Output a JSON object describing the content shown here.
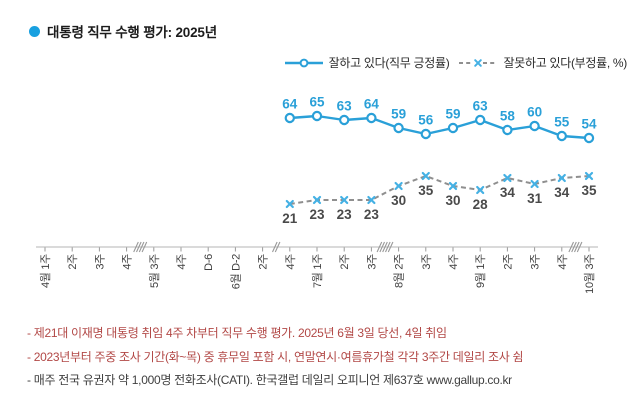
{
  "title": {
    "text": "대통령 직무 수행 평가: 2025년"
  },
  "legend": {
    "items": [
      {
        "label": "잘하고 있다(직무 긍정률)",
        "series": "positive"
      },
      {
        "label": "잘못하고 있다(부정률, %)",
        "series": "negative"
      }
    ]
  },
  "colors": {
    "positive_blue": "#2aa0d8",
    "marker_x_blue": "#45b1e4",
    "negative_gray": "#8f8f8f",
    "negative_label_gray": "#4a4a4a",
    "axis_gray": "#b5b5b5",
    "tick_gray": "#9a9a9a",
    "tick_label_gray": "#3f3f3f",
    "title_bullet_blue": "#18a0e0",
    "note_red": "#b24846",
    "note_dark": "#3f3f3f"
  },
  "chart_data": {
    "type": "line",
    "title": "대통령 직무 수행 평가: 2025년",
    "unit": "%",
    "grid": false,
    "legend_position": "top-right",
    "categories": [
      {
        "month": "4월",
        "week": "1주"
      },
      {
        "week": "2주"
      },
      {
        "week": "3주"
      },
      {
        "week": "4주"
      },
      {
        "month": "5월",
        "week": "3주"
      },
      {
        "week": "4주"
      },
      {
        "week": "D-6"
      },
      {
        "month": "6월",
        "week": "D-2"
      },
      {
        "week": "2주"
      },
      {
        "week": "4주"
      },
      {
        "month": "7월",
        "week": "1주"
      },
      {
        "week": "2주"
      },
      {
        "week": "3주"
      },
      {
        "month": "8월",
        "week": "2주"
      },
      {
        "week": "3주"
      },
      {
        "week": "4주"
      },
      {
        "month": "9월",
        "week": "1주"
      },
      {
        "week": "2주"
      },
      {
        "week": "3주"
      },
      {
        "week": "4주"
      },
      {
        "month": "10월",
        "week": "3주"
      }
    ],
    "axis_breaks": [
      {
        "after_index": 3,
        "slashes": 4
      },
      {
        "after_index": 8,
        "slashes": 2
      },
      {
        "after_index": 12,
        "slashes": 5
      },
      {
        "after_index": 19,
        "slashes": 4
      }
    ],
    "series": [
      {
        "name": "잘하고 있다(직무 긍정률)",
        "style": "solid",
        "marker": "circle",
        "label_position": "above",
        "color": "#2aa0d8",
        "label_color": "#2aa0d8",
        "marker_color": "#2aa0d8",
        "start_index": 9,
        "values": [
          64,
          65,
          63,
          64,
          59,
          56,
          59,
          63,
          58,
          60,
          55,
          54
        ]
      },
      {
        "name": "잘못하고 있다(부정률, %)",
        "style": "dashed",
        "marker": "x",
        "label_position": "below",
        "color": "#8f8f8f",
        "label_color": "#4a4a4a",
        "marker_color": "#45b1e4",
        "start_index": 9,
        "values": [
          21,
          23,
          23,
          23,
          30,
          35,
          30,
          28,
          34,
          31,
          34,
          35
        ]
      }
    ]
  },
  "footnotes": [
    {
      "text": "- 제21대 이재명 대통령 취임 4주 차부터 직무 수행 평가. 2025년 6월 3일 당선, 4일 취임",
      "tone": "red"
    },
    {
      "text": "- 2023년부터 주중 조사 기간(화~목) 중 휴무일 포함 시, 연말연시·여름휴가철 각각 3주간 데일리 조사 쉼",
      "tone": "red"
    },
    {
      "text": "- 매주 전국 유권자 약 1,000명 전화조사(CATI). 한국갤럽 데일리 오피니언 제637호 www.gallup.co.kr",
      "tone": "dark"
    }
  ]
}
